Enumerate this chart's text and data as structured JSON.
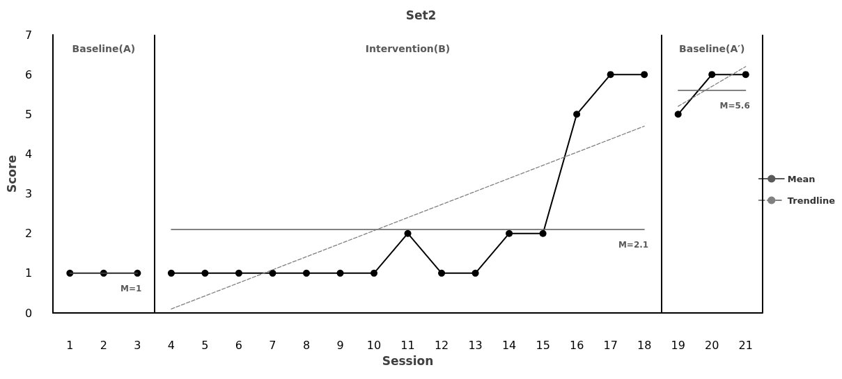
{
  "chart_data": {
    "type": "line",
    "title": "Set2",
    "xlabel": "Session",
    "ylabel": "Score",
    "xlim": [
      0.5,
      21.5
    ],
    "xticks": [
      1,
      2,
      3,
      4,
      5,
      6,
      7,
      8,
      9,
      10,
      11,
      12,
      13,
      14,
      15,
      16,
      17,
      18,
      19,
      20,
      21
    ],
    "ylim": [
      0,
      7
    ],
    "yticks": [
      0,
      1,
      2,
      3,
      4,
      5,
      6,
      7
    ],
    "grid": false,
    "legend": "right",
    "series": [
      {
        "color": "#000000",
        "marker": "circle",
        "line_style": "solid",
        "x": [
          1,
          2,
          3,
          3.5,
          4,
          5,
          6,
          7,
          8,
          9,
          10,
          11,
          12,
          13,
          14,
          15,
          16,
          17,
          18,
          18.5,
          19,
          20,
          21
        ],
        "values": [
          1,
          1,
          1,
          null,
          1,
          1,
          1,
          1,
          1,
          1,
          1,
          2,
          1,
          1,
          2,
          2,
          5,
          6,
          6,
          null,
          5,
          6,
          6
        ]
      },
      {
        "name": "Mean",
        "color": "#595959",
        "marker": "none",
        "line_style": "solid",
        "x": [
          1,
          3,
          3.5,
          4,
          18,
          18.5,
          19,
          21
        ],
        "values": [
          1,
          1,
          null,
          2.1,
          2.1,
          null,
          5.6,
          5.6
        ]
      },
      {
        "name": "Trendline",
        "color": "#808080",
        "marker": "none",
        "line_style": "dashed",
        "x": [
          4,
          18,
          18.5,
          19,
          21
        ],
        "values": [
          0.1,
          4.7,
          null,
          5.2,
          6.2
        ]
      }
    ],
    "ref_lines": [
      {
        "axis": "x",
        "value": 3.5,
        "color": "#000000"
      },
      {
        "axis": "x",
        "value": 18.5,
        "color": "#000000"
      },
      {
        "axis": "x",
        "value": 21.5,
        "color": "#000000"
      }
    ],
    "annotations": [
      "Baseline(A)",
      "Intervention(B)",
      "Baseline(A′)",
      "M=1",
      "M=2.1",
      "M=5.6"
    ]
  }
}
